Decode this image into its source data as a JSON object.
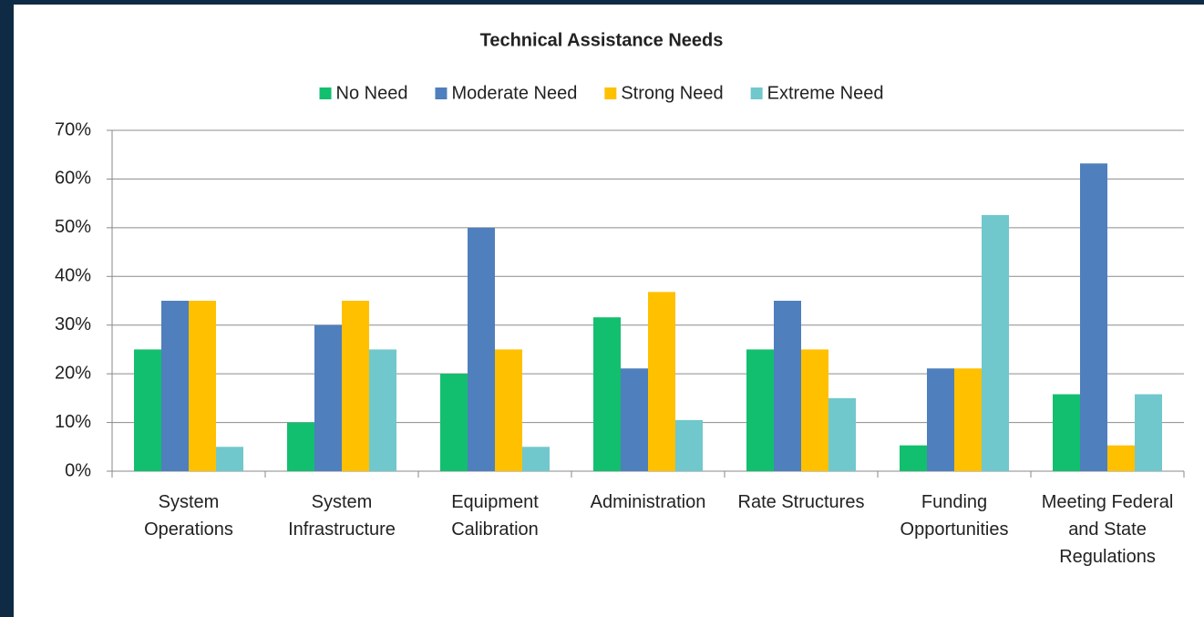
{
  "chart_data": {
    "type": "bar",
    "title": "Technical Assistance Needs",
    "categories": [
      "System Operations",
      "System Infrastructure",
      "Equipment Calibration",
      "Administration",
      "Rate Structures",
      "Funding Opportunities",
      "Meeting Federal and State Regulations"
    ],
    "series": [
      {
        "name": "No Need",
        "color": "#12bf6e",
        "values": [
          25,
          10,
          20,
          31.6,
          25,
          5.3,
          15.8
        ]
      },
      {
        "name": "Moderate Need",
        "color": "#4f7fbd",
        "values": [
          35,
          30,
          50,
          21.1,
          35,
          21.1,
          63.2
        ]
      },
      {
        "name": "Strong Need",
        "color": "#ffc000",
        "values": [
          35,
          35,
          25,
          36.8,
          25,
          21.1,
          5.3
        ]
      },
      {
        "name": "Extreme Need",
        "color": "#70c8cc",
        "values": [
          5,
          25,
          5,
          10.5,
          15,
          52.6,
          15.8
        ]
      }
    ],
    "ylim": [
      0,
      70
    ],
    "yticks": [
      {
        "value": 0,
        "label": "0%"
      },
      {
        "value": 10,
        "label": "10%"
      },
      {
        "value": 20,
        "label": "20%"
      },
      {
        "value": 30,
        "label": "30%"
      },
      {
        "value": 40,
        "label": "40%"
      },
      {
        "value": 50,
        "label": "50%"
      },
      {
        "value": 60,
        "label": "60%"
      },
      {
        "value": 70,
        "label": "70%"
      }
    ],
    "grid": true,
    "legend": "top"
  }
}
